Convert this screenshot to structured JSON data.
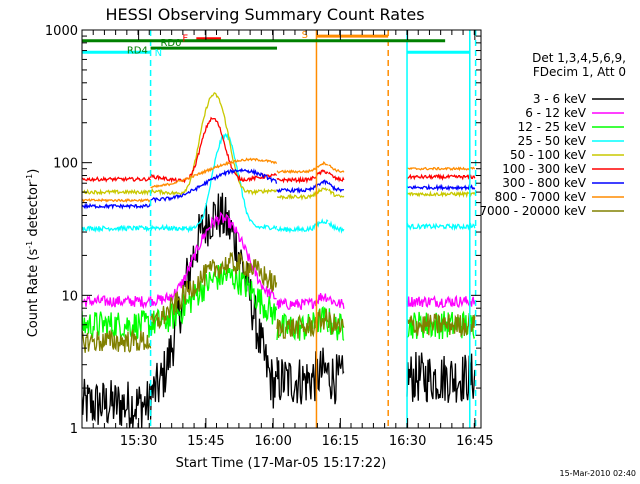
{
  "chart_data": {
    "type": "line",
    "title": "HESSI Observing Summary Count Rates",
    "xlabel": "Start Time (17-Mar-05 15:17:22)",
    "ylabel_main": "Count Rate (s",
    "ylabel_sup1": "-1",
    "ylabel_mid": " detector",
    "ylabel_sup2": "-1",
    "ylabel_end": ")",
    "y_scale": "log",
    "ylim": [
      1,
      1000
    ],
    "xlim_minutes": [
      0,
      89
    ],
    "x_tick_labels": [
      "15:30",
      "15:45",
      "16:00",
      "16:15",
      "16:30",
      "16:45"
    ],
    "x_tick_minutes": [
      12.63,
      27.63,
      42.63,
      57.63,
      72.63,
      87.63
    ],
    "y_tick_labels": [
      "1",
      "10",
      "100",
      "1000"
    ],
    "y_tick_values": [
      1,
      10,
      100,
      1000
    ],
    "grid": false,
    "legend_position": "right",
    "legend_header": [
      "Det 1,3,4,5,6,9,",
      "FDecim 1, Att 0"
    ],
    "series": [
      {
        "name": "3 - 6 keV",
        "color": "#000000",
        "base": 1.5,
        "post": 2.4,
        "peak": 40,
        "peakMin": 30,
        "w": 6.0,
        "rise": 0.02,
        "noise": 0.45
      },
      {
        "name": "6 - 12 keV",
        "color": "#ff00ff",
        "base": 9.0,
        "post": 9.0,
        "peak": 38,
        "peakMin": 31,
        "w": 6.0,
        "rise": 0.03,
        "noise": 0.1
      },
      {
        "name": "12 - 25 keV",
        "color": "#00ff00",
        "base": 6.0,
        "post": 6.0,
        "peak": 14,
        "peakMin": 32,
        "w": 8.0,
        "rise": 0.0,
        "noise": 0.25
      },
      {
        "name": "25 - 50 keV",
        "color": "#00ffff",
        "base": 32,
        "post": 33,
        "peak": 160,
        "peakMin": 32,
        "w": 3.0,
        "rise": 0.02,
        "noise": 0.04
      },
      {
        "name": "50 - 100 keV",
        "color": "#c8c800",
        "base": 60,
        "post": 58,
        "peak": 330,
        "peakMin": 29.5,
        "w": 3.2,
        "rise": 0.05,
        "noise": 0.03
      },
      {
        "name": "100 - 300 keV",
        "color": "#ff0000",
        "base": 75,
        "post": 78,
        "peak": 220,
        "peakMin": 29.2,
        "w": 3.0,
        "rise": 0.08,
        "noise": 0.03
      },
      {
        "name": "300 - 800 keV",
        "color": "#0000ff",
        "base": 47,
        "post": 65,
        "peak": 85,
        "peakMin": 35,
        "w": 10.0,
        "rise": 0.05,
        "noise": 0.03
      },
      {
        "name": "800 - 7000 keV",
        "color": "#ff8c00",
        "base": 52,
        "post": 90,
        "peak": 98,
        "peakMin": 37,
        "w": 14.0,
        "rise": 0.05,
        "noise": 0.02
      },
      {
        "name": "7000 - 20000 keV",
        "color": "#808000",
        "base": 4.5,
        "post": 6.0,
        "peak": 17,
        "peakMin": 34,
        "w": 12.0,
        "rise": 0.0,
        "noise": 0.2
      }
    ],
    "data_segments_minutes": [
      [
        0,
        15.3
      ],
      [
        15.3,
        43.5
      ],
      [
        43.5,
        55.0
      ],
      [
        55.0,
        58.5
      ],
      [
        72.5,
        87.8
      ]
    ],
    "annotations": {
      "N_label": "N",
      "F_label": "F",
      "S_label": "S",
      "RD0_label": "RD0",
      "RD4_label": "RD4"
    },
    "flag_bars": [
      {
        "name": "N",
        "color": "#00ffff",
        "level": 680,
        "spans": [
          [
            0,
            15.3
          ],
          [
            72.5,
            86.5
          ]
        ]
      },
      {
        "name": "F",
        "color": "#ff0000",
        "level": 860,
        "spans": [
          [
            25.5,
            31.0
          ]
        ]
      },
      {
        "name": "S",
        "color": "#ff8c00",
        "level": 900,
        "spans": [
          [
            52.3,
            68.3
          ]
        ]
      },
      {
        "name": "RD0",
        "color": "#008000",
        "level": 830,
        "spans": [
          [
            0,
            81
          ]
        ]
      },
      {
        "name": "RD4",
        "color": "#008000",
        "level": 730,
        "spans": [
          [
            15.3,
            43.5
          ]
        ]
      }
    ],
    "vertical_lines": [
      {
        "minute": 15.3,
        "color": "#00ffff",
        "dashed": true
      },
      {
        "minute": 72.5,
        "color": "#00ffff",
        "dashed": false
      },
      {
        "minute": 86.5,
        "color": "#00ffff",
        "dashed": false
      },
      {
        "minute": 87.8,
        "color": "#00ffff",
        "dashed": true
      },
      {
        "minute": 52.3,
        "color": "#ff8c00",
        "dashed": false
      },
      {
        "minute": 68.3,
        "color": "#ff8c00",
        "dashed": true
      }
    ]
  },
  "footer": {
    "timestamp": "15-Mar-2010 02:40"
  }
}
